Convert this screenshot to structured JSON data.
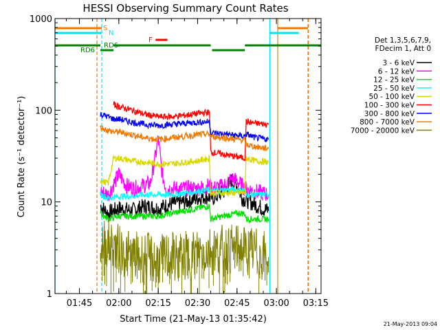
{
  "chart_data": {
    "type": "line",
    "title": "HESSI Observing Summary Count Rates",
    "xlabel": "Start Time (21-May-13 01:35:42)",
    "ylabel": "Count Rate (s⁻¹ detector⁻¹)",
    "y_scale": "log",
    "ylim": [
      1,
      1000
    ],
    "xlim": [
      "01:35:42",
      "03:17:00"
    ],
    "x_ticks": [
      "01:45",
      "02:00",
      "02:15",
      "02:30",
      "02:45",
      "03:00",
      "03:15"
    ],
    "y_ticks": [
      "1",
      "10",
      "100",
      "1000"
    ],
    "legend_header": [
      "Det 1,3,5,6,7,9,",
      "FDecim 1, Att 0"
    ],
    "legend_position": "right",
    "timestamp": "21-May-2013 09:04",
    "flags": [
      {
        "label": "S",
        "color": "#f07800",
        "segments": [
          [
            "01:35:42",
            "01:53:30"
          ],
          [
            "03:00:30",
            "03:12:00"
          ]
        ]
      },
      {
        "label": "N",
        "color": "#00e0ff",
        "segments": [
          [
            "01:35:42",
            "01:53:30"
          ],
          [
            "02:57:30",
            "03:08:30"
          ]
        ]
      },
      {
        "label": "F",
        "color": "#ff0000",
        "segments": [
          [
            "02:14:00",
            "02:18:30"
          ]
        ]
      },
      {
        "label": "RD6",
        "color": "#008000",
        "segments": [
          [
            "01:35:42",
            "01:53:00"
          ],
          [
            "01:53:00",
            "01:58:00"
          ],
          [
            "01:58:00",
            "02:35:00"
          ],
          [
            "02:35:30",
            "02:48:00"
          ],
          [
            "02:48:00",
            "03:17:00"
          ]
        ]
      }
    ],
    "flag_labels": [
      "S",
      "N",
      "F",
      "RD6",
      "RD6"
    ],
    "vertical_markers": [
      {
        "time": "01:51:40",
        "color": "#f07800",
        "style": "dashed"
      },
      {
        "time": "01:53:30",
        "color": "#00e0ff",
        "style": "dashed"
      },
      {
        "time": "02:57:30",
        "color": "#00e0ff",
        "style": "solid"
      },
      {
        "time": "03:00:30",
        "color": "#d08000",
        "style": "solid"
      },
      {
        "time": "03:12:00",
        "color": "#00e0ff",
        "style": "dashed"
      },
      {
        "time": "03:12:10",
        "color": "#f07800",
        "style": "dashed"
      },
      {
        "time": "01:35:42",
        "color": "#00e0ff",
        "style": "solid"
      }
    ],
    "series": [
      {
        "name": "3 - 6 keV",
        "color": "#000000",
        "points": [
          [
            "01:53:00",
            9
          ],
          [
            "01:56:00",
            7.5
          ],
          [
            "02:00:00",
            8.5
          ],
          [
            "02:05:00",
            8
          ],
          [
            "02:10:00",
            9
          ],
          [
            "02:15:00",
            8.5
          ],
          [
            "02:20:00",
            9.5
          ],
          [
            "02:25:00",
            10
          ],
          [
            "02:30:00",
            11
          ],
          [
            "02:33:00",
            11.5
          ],
          [
            "02:36:00",
            11
          ],
          [
            "02:40:00",
            13
          ],
          [
            "02:43:00",
            17
          ],
          [
            "02:45:00",
            15
          ],
          [
            "02:47:00",
            11
          ],
          [
            "02:50:00",
            10
          ],
          [
            "02:53:00",
            9
          ],
          [
            "02:57:00",
            8
          ]
        ]
      },
      {
        "name": "6 - 12 keV",
        "color": "#ff00ff",
        "points": [
          [
            "01:53:00",
            13
          ],
          [
            "01:56:00",
            12
          ],
          [
            "02:00:00",
            20
          ],
          [
            "02:03:00",
            15
          ],
          [
            "02:06:00",
            14
          ],
          [
            "02:09:00",
            15
          ],
          [
            "02:12:00",
            16
          ],
          [
            "02:14:00",
            32
          ],
          [
            "02:15:00",
            50
          ],
          [
            "02:16:30",
            20
          ],
          [
            "02:18:00",
            14
          ],
          [
            "02:22:00",
            14
          ],
          [
            "02:26:00",
            14
          ],
          [
            "02:30:00",
            14
          ],
          [
            "02:34:00",
            15
          ],
          [
            "02:36:00",
            14
          ],
          [
            "02:40:00",
            15
          ],
          [
            "02:43:00",
            18
          ],
          [
            "02:45:00",
            17
          ],
          [
            "02:48:00",
            14
          ],
          [
            "02:52:00",
            13
          ],
          [
            "02:57:00",
            12
          ]
        ]
      },
      {
        "name": "12 - 25 keV",
        "color": "#00e000",
        "points": [
          [
            "01:53:00",
            7.5
          ],
          [
            "01:56:00",
            6.5
          ],
          [
            "02:00:00",
            7
          ],
          [
            "02:05:00",
            7
          ],
          [
            "02:10:00",
            7
          ],
          [
            "02:15:00",
            7
          ],
          [
            "02:20:00",
            7.5
          ],
          [
            "02:25:00",
            8
          ],
          [
            "02:30:00",
            8.5
          ],
          [
            "02:34:30",
            9
          ],
          [
            "02:35:00",
            6.5
          ],
          [
            "02:40:00",
            7
          ],
          [
            "02:45:00",
            7.5
          ],
          [
            "02:48:00",
            7.5
          ],
          [
            "02:48:30",
            6.5
          ],
          [
            "02:52:00",
            6.5
          ],
          [
            "02:57:00",
            6.5
          ]
        ]
      },
      {
        "name": "25 - 50 keV",
        "color": "#00ffff",
        "points": [
          [
            "01:53:00",
            12
          ],
          [
            "01:56:00",
            11
          ],
          [
            "02:00:00",
            11.5
          ],
          [
            "02:05:00",
            11.5
          ],
          [
            "02:10:00",
            12
          ],
          [
            "02:15:00",
            12
          ],
          [
            "02:20:00",
            12
          ],
          [
            "02:25:00",
            12.5
          ],
          [
            "02:30:00",
            13
          ],
          [
            "02:34:30",
            13.5
          ],
          [
            "02:35:00",
            13
          ],
          [
            "02:40:00",
            13.5
          ],
          [
            "02:45:00",
            13.5
          ],
          [
            "02:48:00",
            13.5
          ],
          [
            "02:48:30",
            12
          ],
          [
            "02:52:00",
            12
          ],
          [
            "02:57:00",
            12
          ]
        ]
      },
      {
        "name": "50 - 100 keV",
        "color": "#d8d800",
        "points": [
          [
            "01:53:00",
            17
          ],
          [
            "01:56:00",
            16
          ],
          [
            "01:58:00",
            30
          ],
          [
            "02:00:00",
            30
          ],
          [
            "02:05:00",
            28
          ],
          [
            "02:10:00",
            27
          ],
          [
            "02:15:00",
            26
          ],
          [
            "02:20:00",
            26
          ],
          [
            "02:25:00",
            27
          ],
          [
            "02:30:00",
            28
          ],
          [
            "02:34:30",
            30
          ],
          [
            "02:35:00",
            12.5
          ],
          [
            "02:40:00",
            12.5
          ],
          [
            "02:45:00",
            12.5
          ],
          [
            "02:48:00",
            12.5
          ],
          [
            "02:48:30",
            30
          ],
          [
            "02:52:00",
            28
          ],
          [
            "02:57:00",
            27
          ]
        ]
      },
      {
        "name": "100 - 300 keV",
        "color": "#ff0000",
        "points": [
          [
            "01:58:00",
            115
          ],
          [
            "02:00:00",
            110
          ],
          [
            "02:05:00",
            100
          ],
          [
            "02:10:00",
            90
          ],
          [
            "02:15:00",
            85
          ],
          [
            "02:20:00",
            85
          ],
          [
            "02:25:00",
            88
          ],
          [
            "02:30:00",
            92
          ],
          [
            "02:34:30",
            95
          ],
          [
            "02:35:00",
            35
          ],
          [
            "02:40:00",
            33
          ],
          [
            "02:45:00",
            31
          ],
          [
            "02:48:00",
            30
          ],
          [
            "02:48:30",
            75
          ],
          [
            "02:52:00",
            72
          ],
          [
            "02:57:00",
            70
          ]
        ]
      },
      {
        "name": "300 - 800 keV",
        "color": "#0000ff",
        "points": [
          [
            "01:53:00",
            90
          ],
          [
            "01:56:00",
            85
          ],
          [
            "01:58:00",
            80
          ],
          [
            "02:00:00",
            80
          ],
          [
            "02:05:00",
            74
          ],
          [
            "02:10:00",
            70
          ],
          [
            "02:15:00",
            68
          ],
          [
            "02:20:00",
            70
          ],
          [
            "02:25:00",
            72
          ],
          [
            "02:30:00",
            74
          ],
          [
            "02:34:30",
            75
          ],
          [
            "02:35:00",
            57
          ],
          [
            "02:40:00",
            55
          ],
          [
            "02:45:00",
            53
          ],
          [
            "02:48:00",
            52
          ],
          [
            "02:48:30",
            55
          ],
          [
            "02:52:00",
            50
          ],
          [
            "02:57:00",
            48
          ]
        ]
      },
      {
        "name": "800 - 7000 keV",
        "color": "#f07800",
        "points": [
          [
            "01:53:00",
            65
          ],
          [
            "01:56:00",
            60
          ],
          [
            "01:58:00",
            58
          ],
          [
            "02:00:00",
            58
          ],
          [
            "02:05:00",
            54
          ],
          [
            "02:10:00",
            50
          ],
          [
            "02:15:00",
            48
          ],
          [
            "02:20:00",
            50
          ],
          [
            "02:25:00",
            52
          ],
          [
            "02:30:00",
            54
          ],
          [
            "02:34:30",
            55
          ],
          [
            "02:35:00",
            52
          ],
          [
            "02:40:00",
            50
          ],
          [
            "02:45:00",
            48
          ],
          [
            "02:48:00",
            47
          ],
          [
            "02:48:30",
            42
          ],
          [
            "02:52:00",
            40
          ],
          [
            "02:57:00",
            38
          ]
        ]
      },
      {
        "name": "7000 - 20000 keV",
        "color": "#808000",
        "points": [
          [
            "01:53:00",
            3.5
          ],
          [
            "01:56:00",
            3.5
          ],
          [
            "02:00:00",
            3
          ],
          [
            "02:05:00",
            2.5
          ],
          [
            "02:10:00",
            2.5
          ],
          [
            "02:15:00",
            2.3
          ],
          [
            "02:20:00",
            2.5
          ],
          [
            "02:25:00",
            2.5
          ],
          [
            "02:30:00",
            2.8
          ],
          [
            "02:35:00",
            3
          ],
          [
            "02:40:00",
            3
          ],
          [
            "02:45:00",
            3
          ],
          [
            "02:48:00",
            3
          ],
          [
            "02:52:00",
            2.8
          ],
          [
            "02:57:00",
            2.5
          ]
        ]
      }
    ]
  }
}
